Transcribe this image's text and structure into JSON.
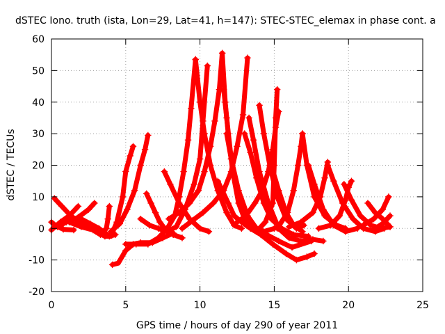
{
  "chart_data": {
    "type": "scatter",
    "title": "dSTEC Iono. truth (ista, Lon=29, Lat=41, h=147): STEC-STEC_elemax in phase cont. a",
    "xlabel": "GPS time / hours of day 290 of year 2011",
    "ylabel": "dSTEC / TECUs",
    "xlim": [
      0,
      25
    ],
    "ylim": [
      -20,
      60
    ],
    "x_ticks": [
      0,
      5,
      10,
      15,
      20,
      25
    ],
    "y_ticks": [
      -20,
      -10,
      0,
      10,
      20,
      30,
      40,
      50,
      60
    ],
    "grid": true,
    "marker": "+",
    "color": "#ff0000",
    "series": [
      {
        "values": [
          [
            0.0,
            2.0
          ],
          [
            0.3,
            0.8
          ],
          [
            0.8,
            -0.3
          ],
          [
            1.5,
            -0.5
          ]
        ]
      },
      {
        "values": [
          [
            0.2,
            9.5
          ],
          [
            0.7,
            7.0
          ],
          [
            1.3,
            4.0
          ],
          [
            2.0,
            1.5
          ],
          [
            2.8,
            0.5
          ]
        ]
      },
      {
        "values": [
          [
            0.0,
            -0.5
          ],
          [
            0.6,
            2.0
          ],
          [
            1.2,
            4.0
          ],
          [
            1.8,
            7.0
          ]
        ]
      },
      {
        "values": [
          [
            0.4,
            0.5
          ],
          [
            1.0,
            2.0
          ],
          [
            1.8,
            3.5
          ],
          [
            2.5,
            6.0
          ],
          [
            2.9,
            8.0
          ]
        ]
      },
      {
        "values": [
          [
            1.2,
            2.0
          ],
          [
            2.0,
            0.5
          ],
          [
            2.8,
            -0.5
          ],
          [
            3.3,
            -2.0
          ],
          [
            3.7,
            0.0
          ],
          [
            3.8,
            3.0
          ],
          [
            3.9,
            7.0
          ]
        ]
      },
      {
        "values": [
          [
            2.0,
            3.0
          ],
          [
            2.6,
            1.5
          ],
          [
            3.2,
            0.0
          ],
          [
            3.9,
            -2.5
          ],
          [
            4.3,
            -2.0
          ]
        ]
      },
      {
        "values": [
          [
            2.5,
            1.0
          ],
          [
            3.0,
            -1.0
          ],
          [
            3.6,
            -2.5
          ],
          [
            4.0,
            -2.5
          ],
          [
            4.4,
            2.0
          ],
          [
            4.8,
            10.0
          ],
          [
            5.0,
            18.0
          ],
          [
            5.3,
            23.0
          ],
          [
            5.5,
            26.0
          ]
        ]
      },
      {
        "values": [
          [
            4.0,
            -1.0
          ],
          [
            4.6,
            1.5
          ],
          [
            5.1,
            6.0
          ],
          [
            5.6,
            12.0
          ],
          [
            6.0,
            20.0
          ],
          [
            6.3,
            25.0
          ],
          [
            6.5,
            29.5
          ]
        ]
      },
      {
        "values": [
          [
            4.1,
            -11.5
          ],
          [
            4.5,
            -11.0
          ],
          [
            5.0,
            -7.0
          ],
          [
            5.5,
            -5.0
          ],
          [
            6.0,
            -4.5
          ],
          [
            6.8,
            -4.5
          ],
          [
            7.5,
            -3.0
          ],
          [
            8.2,
            -1.5
          ]
        ]
      },
      {
        "values": [
          [
            5.0,
            -5.0
          ],
          [
            5.7,
            -5.0
          ],
          [
            6.5,
            -5.0
          ],
          [
            7.2,
            -3.0
          ],
          [
            7.8,
            0.0
          ],
          [
            8.3,
            4.0
          ],
          [
            8.6,
            10.0
          ],
          [
            8.9,
            18.0
          ],
          [
            9.2,
            28.0
          ],
          [
            9.4,
            38.0
          ],
          [
            9.7,
            53.5
          ]
        ]
      },
      {
        "values": [
          [
            6.0,
            3.0
          ],
          [
            6.6,
            1.0
          ],
          [
            7.2,
            0.0
          ],
          [
            7.8,
            -1.0
          ],
          [
            8.4,
            0.5
          ],
          [
            9.0,
            6.0
          ],
          [
            9.6,
            14.0
          ],
          [
            10.0,
            22.0
          ],
          [
            10.2,
            34.0
          ],
          [
            10.5,
            51.5
          ]
        ]
      },
      {
        "values": [
          [
            6.4,
            11.0
          ],
          [
            6.7,
            8.0
          ],
          [
            7.0,
            5.0
          ],
          [
            7.3,
            2.0
          ],
          [
            7.7,
            -0.5
          ],
          [
            8.2,
            -2.0
          ],
          [
            8.8,
            -3.0
          ]
        ]
      },
      {
        "values": [
          [
            7.6,
            18.0
          ],
          [
            8.0,
            14.0
          ],
          [
            8.6,
            8.0
          ],
          [
            9.3,
            3.0
          ],
          [
            10.0,
            0.0
          ],
          [
            10.6,
            -1.0
          ]
        ]
      },
      {
        "values": [
          [
            7.9,
            3.0
          ],
          [
            8.6,
            5.0
          ],
          [
            9.3,
            8.0
          ],
          [
            9.9,
            12.0
          ],
          [
            10.3,
            18.0
          ],
          [
            10.7,
            26.0
          ],
          [
            11.0,
            34.0
          ],
          [
            11.3,
            44.0
          ],
          [
            11.5,
            55.5
          ]
        ]
      },
      {
        "values": [
          [
            9.7,
            53.5
          ],
          [
            10.0,
            40.0
          ],
          [
            10.3,
            30.0
          ],
          [
            10.7,
            20.0
          ],
          [
            11.2,
            12.0
          ],
          [
            11.8,
            5.0
          ],
          [
            12.3,
            1.0
          ],
          [
            12.8,
            0.0
          ]
        ]
      },
      {
        "values": [
          [
            8.8,
            0.0
          ],
          [
            9.5,
            2.5
          ],
          [
            10.2,
            5.0
          ],
          [
            10.9,
            8.0
          ],
          [
            11.6,
            12.0
          ],
          [
            12.1,
            18.0
          ],
          [
            12.5,
            26.0
          ],
          [
            12.9,
            36.0
          ],
          [
            13.2,
            54.0
          ]
        ]
      },
      {
        "values": [
          [
            11.5,
            55.5
          ],
          [
            11.7,
            40.0
          ],
          [
            11.9,
            30.0
          ],
          [
            12.2,
            18.0
          ],
          [
            12.6,
            8.0
          ],
          [
            13.0,
            3.0
          ],
          [
            13.6,
            0.0
          ],
          [
            14.2,
            -1.0
          ]
        ]
      },
      {
        "values": [
          [
            11.6,
            44.0
          ],
          [
            11.8,
            35.0
          ],
          [
            12.1,
            22.0
          ],
          [
            12.5,
            12.0
          ],
          [
            13.0,
            4.0
          ],
          [
            13.6,
            0.0
          ],
          [
            14.3,
            -1.0
          ],
          [
            15.0,
            0.0
          ]
        ]
      },
      {
        "values": [
          [
            11.8,
            30.0
          ],
          [
            12.1,
            22.0
          ],
          [
            12.6,
            12.0
          ],
          [
            13.2,
            4.0
          ],
          [
            13.8,
            0.0
          ],
          [
            14.5,
            -2.0
          ],
          [
            15.3,
            -4.0
          ],
          [
            16.2,
            -6.0
          ],
          [
            17.5,
            -4.0
          ]
        ]
      },
      {
        "values": [
          [
            11.2,
            15.0
          ],
          [
            11.5,
            12.0
          ],
          [
            11.9,
            8.0
          ],
          [
            12.3,
            4.0
          ],
          [
            12.8,
            2.0
          ],
          [
            13.4,
            0.0
          ],
          [
            14.1,
            -2.0
          ],
          [
            14.9,
            -5.0
          ],
          [
            15.8,
            -8.0
          ],
          [
            16.5,
            -10.0
          ],
          [
            17.2,
            -9.0
          ],
          [
            17.7,
            -8.0
          ]
        ]
      },
      {
        "values": [
          [
            13.0,
            30.0
          ],
          [
            13.4,
            24.0
          ],
          [
            13.8,
            16.0
          ],
          [
            14.3,
            8.0
          ],
          [
            14.8,
            3.0
          ],
          [
            15.5,
            0.0
          ],
          [
            16.3,
            -2.0
          ],
          [
            17.3,
            -2.5
          ]
        ]
      },
      {
        "values": [
          [
            13.3,
            35.0
          ],
          [
            13.6,
            28.0
          ],
          [
            14.0,
            18.0
          ],
          [
            14.6,
            8.0
          ],
          [
            15.3,
            0.0
          ],
          [
            16.0,
            -3.0
          ],
          [
            16.8,
            -4.0
          ],
          [
            17.6,
            -3.5
          ],
          [
            18.3,
            -4.0
          ]
        ]
      },
      {
        "values": [
          [
            12.5,
            2.0
          ],
          [
            13.1,
            4.0
          ],
          [
            13.7,
            8.0
          ],
          [
            14.2,
            12.0
          ],
          [
            14.6,
            18.0
          ],
          [
            14.9,
            25.0
          ],
          [
            15.1,
            32.0
          ],
          [
            15.3,
            37.0
          ]
        ]
      },
      {
        "values": [
          [
            14.0,
            39.0
          ],
          [
            14.3,
            30.0
          ],
          [
            14.7,
            20.0
          ],
          [
            15.2,
            10.0
          ],
          [
            15.8,
            3.0
          ],
          [
            16.5,
            0.0
          ],
          [
            17.0,
            1.0
          ]
        ]
      },
      {
        "values": [
          [
            13.8,
            -1.0
          ],
          [
            14.4,
            2.0
          ],
          [
            14.9,
            8.0
          ],
          [
            15.0,
            20.0
          ],
          [
            15.1,
            35.0
          ],
          [
            15.2,
            44.0
          ]
        ]
      },
      {
        "values": [
          [
            14.8,
            20.0
          ],
          [
            15.3,
            12.0
          ],
          [
            15.8,
            5.0
          ],
          [
            16.3,
            1.0
          ],
          [
            16.9,
            -1.0
          ]
        ]
      },
      {
        "values": [
          [
            15.2,
            0.0
          ],
          [
            15.9,
            5.0
          ],
          [
            16.3,
            12.0
          ],
          [
            16.6,
            20.0
          ],
          [
            16.8,
            26.0
          ],
          [
            16.9,
            30.0
          ]
        ]
      },
      {
        "values": [
          [
            16.9,
            30.0
          ],
          [
            17.2,
            20.0
          ],
          [
            17.7,
            10.0
          ],
          [
            18.4,
            4.0
          ],
          [
            19.2,
            1.0
          ],
          [
            19.8,
            0.0
          ]
        ]
      },
      {
        "values": [
          [
            17.3,
            20.0
          ],
          [
            17.7,
            14.0
          ],
          [
            18.3,
            6.0
          ],
          [
            19.0,
            1.0
          ],
          [
            19.8,
            -1.0
          ],
          [
            20.6,
            0.0
          ]
        ]
      },
      {
        "values": [
          [
            16.0,
            0.5
          ],
          [
            16.8,
            2.0
          ],
          [
            17.6,
            5.0
          ],
          [
            18.1,
            10.0
          ],
          [
            18.4,
            16.0
          ],
          [
            18.6,
            21.0
          ]
        ]
      },
      {
        "values": [
          [
            18.6,
            20.0
          ],
          [
            19.0,
            15.0
          ],
          [
            19.6,
            8.0
          ],
          [
            20.3,
            3.0
          ],
          [
            21.0,
            0.0
          ],
          [
            21.8,
            -1.0
          ],
          [
            22.4,
            0.0
          ]
        ]
      },
      {
        "values": [
          [
            18.0,
            0.0
          ],
          [
            18.8,
            1.0
          ],
          [
            19.4,
            4.0
          ],
          [
            19.8,
            9.0
          ],
          [
            20.0,
            13.0
          ],
          [
            20.2,
            15.0
          ]
        ]
      },
      {
        "values": [
          [
            19.7,
            14.0
          ],
          [
            20.2,
            9.0
          ],
          [
            20.8,
            4.0
          ],
          [
            21.5,
            1.0
          ],
          [
            22.2,
            0.0
          ],
          [
            22.8,
            0.5
          ]
        ]
      },
      {
        "values": [
          [
            21.0,
            1.0
          ],
          [
            21.7,
            3.0
          ],
          [
            22.3,
            6.0
          ],
          [
            22.7,
            10.0
          ]
        ]
      },
      {
        "values": [
          [
            21.3,
            8.0
          ],
          [
            21.8,
            5.0
          ],
          [
            22.3,
            3.0
          ],
          [
            22.8,
            0.5
          ]
        ]
      },
      {
        "values": [
          [
            21.8,
            0.0
          ],
          [
            22.3,
            1.5
          ],
          [
            22.8,
            4.0
          ]
        ]
      }
    ]
  }
}
